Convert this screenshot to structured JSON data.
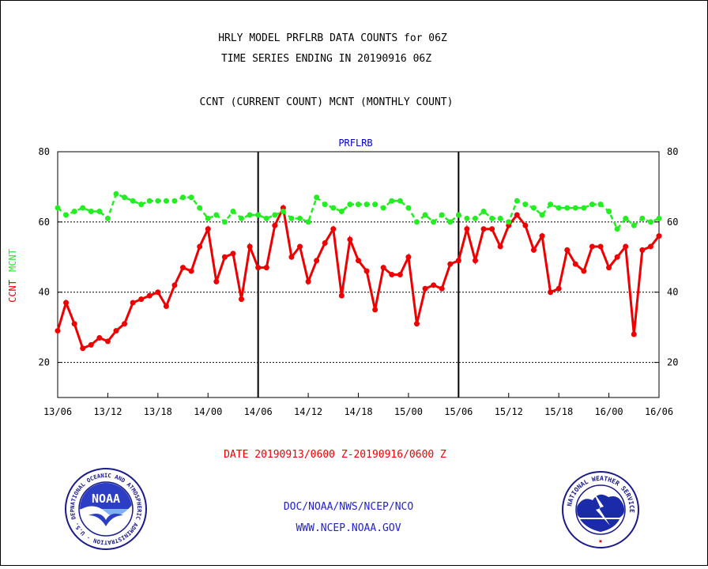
{
  "header": {
    "title_line1": "HRLY MODEL PRFLRB DATA COUNTS for 06Z",
    "title_line2": "TIME SERIES ENDING IN 20190916 06Z",
    "subtitle": "CCNT (CURRENT COUNT) MCNT (MONTHLY COUNT)"
  },
  "footer": {
    "date_range": "DATE 20190913/0600 Z-20190916/0600 Z",
    "org_line": "DOC/NOAA/NWS/NCEP/NCO",
    "url": "WWW.NCEP.NOAA.GOV"
  },
  "logos": {
    "noaa": {
      "icon": "noaa-seal-icon",
      "center_text": "NOAA",
      "ring_text": "NATIONAL OCEANIC AND ATMOSPHERIC ADMINISTRATION · U.S. DEPARTMENT OF COMMERCE ·"
    },
    "nws": {
      "icon": "nws-seal-icon",
      "ring_text": "NATIONAL WEATHER SERVICE"
    }
  },
  "colors": {
    "ccnt": "#ee0000",
    "mcnt": "#22ee22",
    "title": "#000000",
    "panel_title": "#0000cc",
    "date": "#ee0000",
    "footer": "#2222cc"
  },
  "chart_data": {
    "type": "line",
    "panel_title": "PRFLRB",
    "ylabel_ccnt": "CCNT",
    "ylabel_mcnt": "MCNT",
    "ylim": [
      10,
      80
    ],
    "yticks": [
      20,
      40,
      60,
      80
    ],
    "hlines": [
      20,
      40,
      60
    ],
    "xlim": [
      0,
      72
    ],
    "xtick_hours": [
      0,
      6,
      12,
      18,
      24,
      30,
      36,
      42,
      48,
      54,
      60,
      66,
      72
    ],
    "xtick_labels": [
      "13/06",
      "13/12",
      "13/18",
      "14/00",
      "14/06",
      "14/12",
      "14/18",
      "15/00",
      "15/06",
      "15/12",
      "15/18",
      "16/00",
      "16/06"
    ],
    "vlines_hours": [
      24,
      48
    ],
    "x_unit": "hours since 13/06",
    "series": [
      {
        "name": "CCNT",
        "color": "#ee0000",
        "values": [
          29,
          37,
          31,
          24,
          25,
          27,
          26,
          29,
          31,
          37,
          38,
          39,
          40,
          36,
          42,
          47,
          46,
          53,
          58,
          43,
          50,
          51,
          38,
          53,
          47,
          47,
          59,
          64,
          50,
          53,
          43,
          49,
          54,
          58,
          39,
          55,
          49,
          46,
          35,
          47,
          45,
          45,
          50,
          31,
          41,
          42,
          41,
          48,
          49,
          58,
          49,
          58,
          58,
          53,
          59,
          62,
          59,
          52,
          56,
          40,
          41,
          52,
          48,
          46,
          53,
          53,
          47,
          50,
          53,
          28,
          52,
          53,
          56
        ]
      },
      {
        "name": "MCNT",
        "color": "#22ee22",
        "values": [
          64,
          62,
          63,
          64,
          63,
          63,
          61,
          68,
          67,
          66,
          65,
          66,
          66,
          66,
          66,
          67,
          67,
          64,
          61,
          62,
          60,
          63,
          61,
          62,
          62,
          61,
          62,
          63,
          61,
          61,
          60,
          67,
          65,
          64,
          63,
          65,
          65,
          65,
          65,
          64,
          66,
          66,
          64,
          60,
          62,
          60,
          62,
          60,
          62,
          61,
          61,
          63,
          61,
          61,
          60,
          66,
          65,
          64,
          62,
          65,
          64,
          64,
          64,
          64,
          65,
          65,
          63,
          58,
          61,
          59,
          61,
          60,
          61
        ]
      }
    ]
  }
}
